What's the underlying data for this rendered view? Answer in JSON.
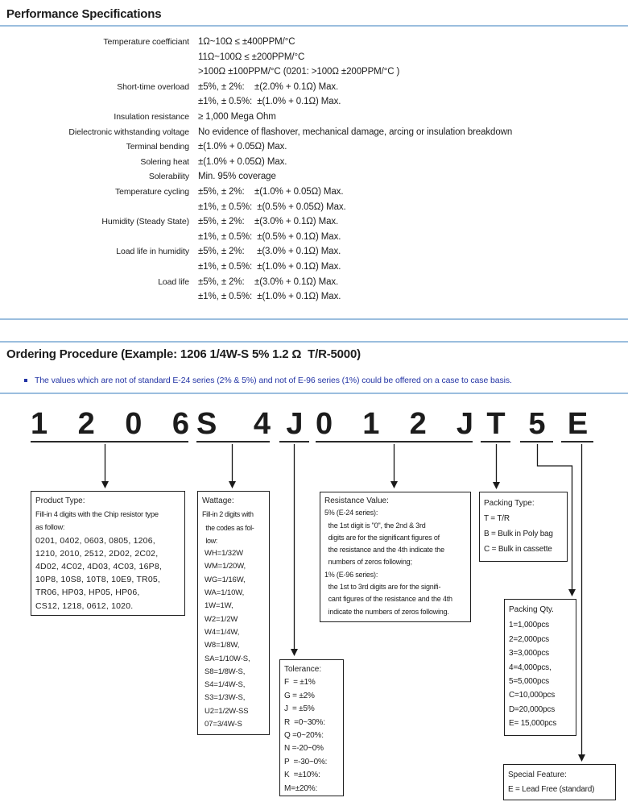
{
  "colors": {
    "rule_blue": "#9bbede",
    "note_blue": "#2334a5",
    "text": "#1c1c1c"
  },
  "performance": {
    "title": "Performance Specifications",
    "rows": [
      {
        "label": "Temperature coefficiant",
        "lines": [
          "1Ω~10Ω ≤ ±400PPM/°C",
          "11Ω~100Ω ≤ ±200PPM/°C",
          ">100Ω ±100PPM/°C (0201: >100Ω ±200PPM/°C )"
        ]
      },
      {
        "label": "Short-time overload",
        "lines": [
          "±5%, ± 2%:    ±(2.0% + 0.1Ω) Max.",
          "±1%, ± 0.5%:  ±(1.0% + 0.1Ω) Max."
        ]
      },
      {
        "label": "Insulation resistance",
        "lines": [
          "≥ 1,000 Mega Ohm"
        ]
      },
      {
        "label": "Dielectronic withstanding voltage",
        "lines": [
          "No evidence of flashover, mechanical damage, arcing or insulation breakdown"
        ]
      },
      {
        "label": "Terminal bending",
        "lines": [
          "±(1.0% + 0.05Ω) Max."
        ]
      },
      {
        "label": "Solering heat",
        "lines": [
          "±(1.0% + 0.05Ω) Max."
        ]
      },
      {
        "label": "Solerability",
        "lines": [
          "Min. 95% coverage"
        ]
      },
      {
        "label": "Temperature cycling",
        "lines": [
          "±5%, ± 2%:    ±(1.0% + 0.05Ω) Max.",
          "±1%, ± 0.5%:  ±(0.5% + 0.05Ω) Max."
        ]
      },
      {
        "label": "Humidity (Steady State)",
        "lines": [
          "±5%, ± 2%:    ±(3.0% + 0.1Ω) Max.",
          "±1%, ± 0.5%:  ±(0.5% + 0.1Ω) Max."
        ]
      },
      {
        "label": "Load life in humidity",
        "lines": [
          "±5%, ± 2%:     ±(3.0% + 0.1Ω) Max.",
          "±1%, ± 0.5%:  ±(1.0% + 0.1Ω) Max."
        ]
      },
      {
        "label": "Load life",
        "lines": [
          "±5%, ± 2%:    ±(3.0% + 0.1Ω) Max.",
          "±1%, ± 0.5%:  ±(1.0% + 0.1Ω) Max."
        ]
      }
    ]
  },
  "ordering": {
    "title": "Ordering Procedure (Example: 1206 1/4W-S 5% 1.2 Ω  T/R-5000)",
    "note": "The values which are not of standard E-24 series (2% & 5%) and not of E-96 series (1%) could be offered on a case to case basis.",
    "code_groups": [
      {
        "name": "product-type-code",
        "chars": [
          "1",
          "2",
          "0",
          "6"
        ]
      },
      {
        "name": "wattage-code",
        "chars": [
          "S",
          "4"
        ]
      },
      {
        "name": "tolerance-code",
        "chars": [
          "J"
        ]
      },
      {
        "name": "resistance-code",
        "chars": [
          "0",
          "1",
          "2",
          "J"
        ]
      },
      {
        "name": "packing-type-code",
        "chars": [
          "T"
        ]
      },
      {
        "name": "packing-qty-code",
        "chars": [
          "5"
        ]
      },
      {
        "name": "special-feature-code",
        "chars": [
          "E"
        ]
      }
    ],
    "boxes": {
      "product_type": {
        "title": "Product Type:",
        "intro": [
          "Fill-in 4 digits with the Chip resistor type",
          "as follow:"
        ],
        "lines": [
          "0201, 0402, 0603, 0805, 1206,",
          "1210, 2010, 2512, 2D02, 2C02,",
          "4D02, 4C02, 4D03, 4C03, 16P8,",
          "10P8, 10S8, 10T8, 10E9, TR05,",
          "TR06, HP03, HP05, HP06,",
          "CS12, 1218, 0612, 1020."
        ]
      },
      "wattage": {
        "title": "Wattage:",
        "intro": [
          "Fill-in 2 digits with",
          "  the codes as fol-",
          "  low:"
        ],
        "lines": [
          "WH=1/32W",
          "WM=1/20W,",
          "WG=1/16W,",
          "WA=1/10W,",
          "1W=1W,",
          "W2=1/2W",
          "W4=1/4W,",
          "W8=1/8W,",
          "SA=1/10W-S,",
          "S8=1/8W-S,",
          "S4=1/4W-S,",
          "S3=1/3W-S,",
          "U2=1/2W-SS",
          "07=3/4W-S"
        ]
      },
      "tolerance": {
        "title": "Tolerance:",
        "lines": [
          "F  = ±1%",
          "G = ±2%",
          "J  = ±5%",
          "R  =0~30%:",
          "Q =0~20%:",
          "N =-20~0%",
          "P  =-30~0%:",
          "K  =±10%:",
          "M=±20%:"
        ]
      },
      "resistance": {
        "title": "Resistance Value:",
        "lines": [
          "5% (E-24 series):",
          "  the 1st digit is \"0\", the 2nd & 3rd",
          "  digits are for the significant figures of",
          "  the resistance and the 4th indicate the",
          "  numbers of zeros following;",
          "1% (E-96 series):",
          "  the 1st to 3rd digits are for the signifi-",
          "  cant figures of the resistance and the 4th",
          "  indicate the numbers of zeros following."
        ]
      },
      "packing_type": {
        "title": "Packing Type:",
        "lines": [
          "T = T/R",
          "B = Bulk in Poly bag",
          "C = Bulk in cassette"
        ]
      },
      "packing_qty": {
        "title": "Packing Qty.",
        "lines": [
          "1=1,000pcs",
          "2=2,000pcs",
          "3=3,000pcs",
          "4=4,000pcs,",
          "5=5,000pcs",
          "C=10,000pcs",
          "D=20,000pcs",
          "E= 15,000pcs"
        ]
      },
      "special_feature": {
        "title": "Special Feature:",
        "lines": [
          "E = Lead Free (standard)"
        ]
      }
    }
  }
}
